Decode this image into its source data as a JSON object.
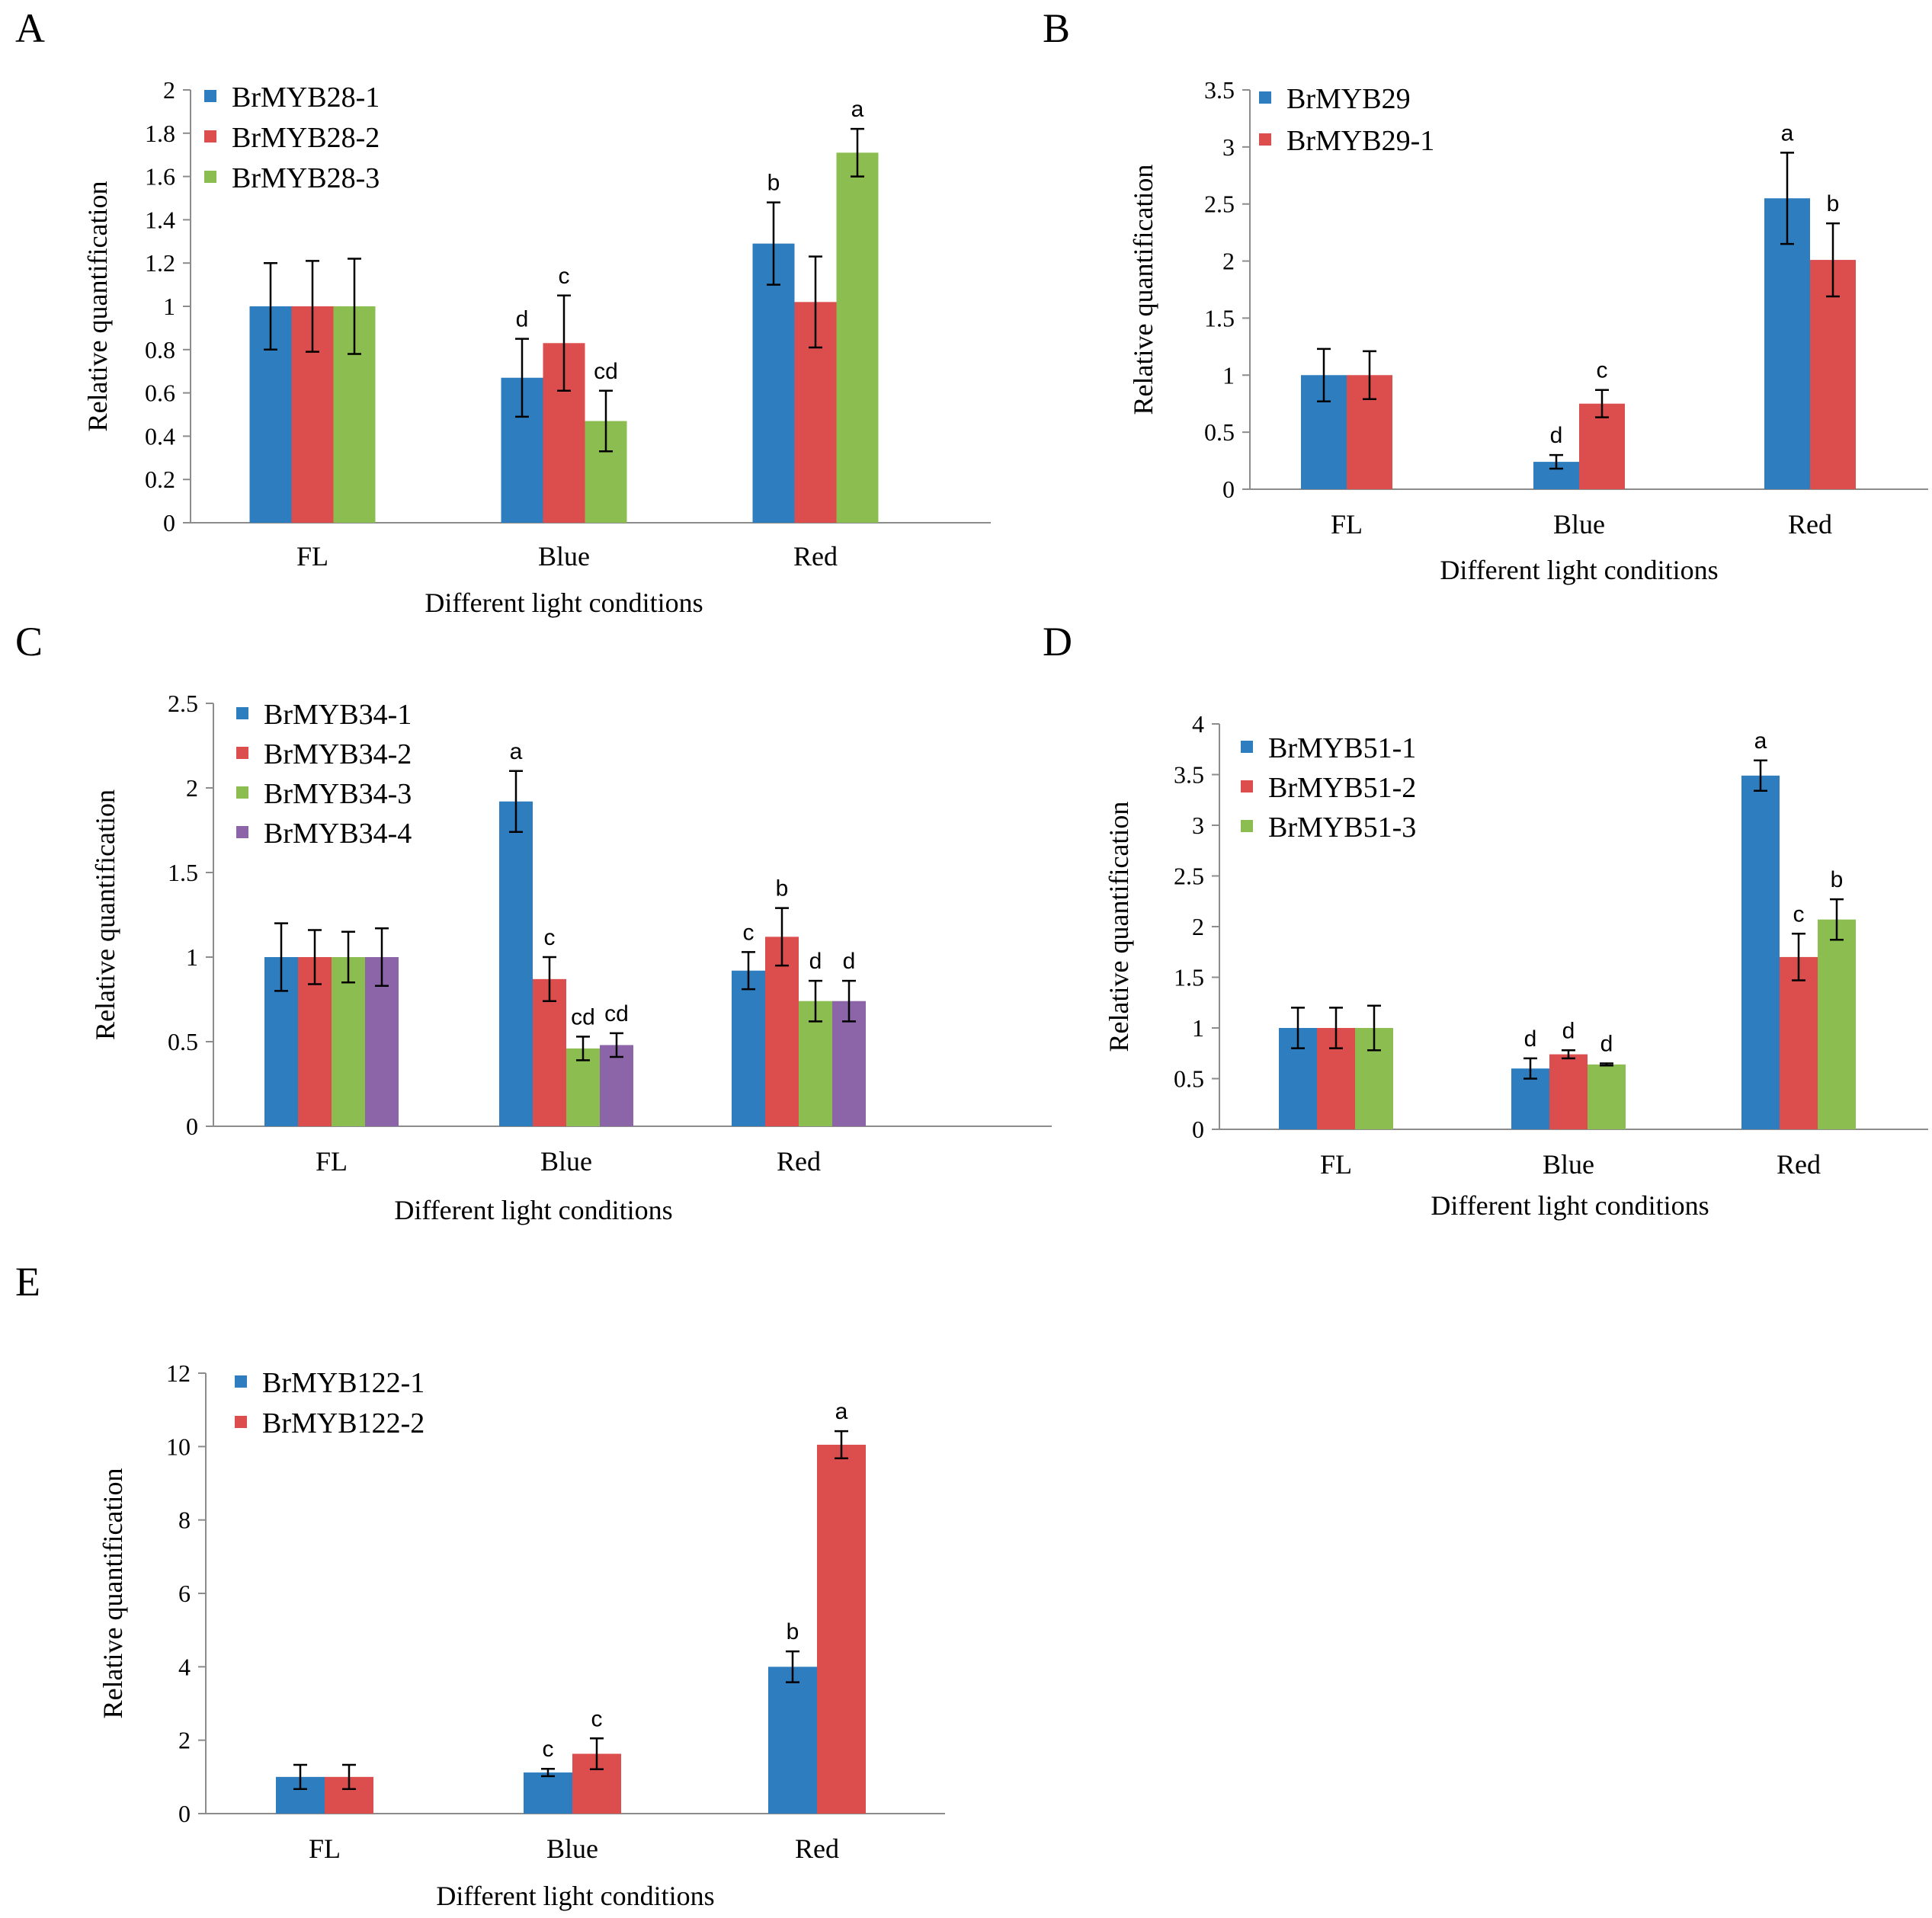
{
  "colors": {
    "blue": "#2e7ebf",
    "red": "#dc4d4d",
    "green": "#8bbd50",
    "purple": "#8c65a9"
  },
  "chart_data": [
    {
      "panel": "A",
      "type": "bar",
      "categories": [
        "FL",
        "Blue",
        "Red"
      ],
      "xlabel": "Different light  conditions",
      "ylabel": "Relative quantification",
      "ylim": [
        0,
        2
      ],
      "yticks": [
        "0",
        "0.2",
        "0.4",
        "0.6",
        "0.8",
        "1",
        "1.2",
        "1.4",
        "1.6",
        "1.8",
        "2"
      ],
      "legend_position": "top-left",
      "series": [
        {
          "name": "BrMYB28-1",
          "color": "blue",
          "values": [
            1.0,
            0.67,
            1.29
          ],
          "errors": [
            0.2,
            0.18,
            0.19
          ],
          "labels": [
            "",
            "d",
            "b"
          ]
        },
        {
          "name": "BrMYB28-2",
          "color": "red",
          "values": [
            1.0,
            0.83,
            1.02
          ],
          "errors": [
            0.21,
            0.22,
            0.21
          ],
          "labels": [
            "",
            "c",
            ""
          ]
        },
        {
          "name": "BrMYB28-3",
          "color": "green",
          "values": [
            1.0,
            0.47,
            1.71
          ],
          "errors": [
            0.22,
            0.14,
            0.11
          ],
          "labels": [
            "",
            "cd",
            "a"
          ]
        }
      ]
    },
    {
      "panel": "B",
      "type": "bar",
      "categories": [
        "FL",
        "Blue",
        "Red"
      ],
      "xlabel": "Different light  conditions",
      "ylabel": "Relative quantification",
      "ylim": [
        0,
        3.5
      ],
      "yticks": [
        "0",
        "0.5",
        "1",
        "1.5",
        "2",
        "2.5",
        "3",
        "3.5"
      ],
      "legend_position": "top-left",
      "series": [
        {
          "name": "BrMYB29",
          "color": "blue",
          "values": [
            1.0,
            0.24,
            2.55
          ],
          "errors": [
            0.23,
            0.06,
            0.4
          ],
          "labels": [
            "",
            "d",
            "a"
          ]
        },
        {
          "name": "BrMYB29-1",
          "color": "red",
          "values": [
            1.0,
            0.75,
            2.01
          ],
          "errors": [
            0.21,
            0.12,
            0.32
          ],
          "labels": [
            "",
            "c",
            "b"
          ]
        }
      ]
    },
    {
      "panel": "C",
      "type": "bar",
      "categories": [
        "FL",
        "Blue",
        "Red"
      ],
      "xlabel": "Different light  conditions",
      "ylabel": "Relative quantification",
      "ylim": [
        0,
        2.5
      ],
      "yticks": [
        "0",
        "0.5",
        "1",
        "1.5",
        "2",
        "2.5"
      ],
      "legend_position": "top-left",
      "series": [
        {
          "name": "BrMYB34-1",
          "color": "blue",
          "values": [
            1.0,
            1.92,
            0.92
          ],
          "errors": [
            0.2,
            0.18,
            0.11
          ],
          "labels": [
            "",
            "a",
            "c"
          ]
        },
        {
          "name": "BrMYB34-2",
          "color": "red",
          "values": [
            1.0,
            0.87,
            1.12
          ],
          "errors": [
            0.16,
            0.13,
            0.17
          ],
          "labels": [
            "",
            "c",
            "b"
          ]
        },
        {
          "name": "BrMYB34-3",
          "color": "green",
          "values": [
            1.0,
            0.46,
            0.74
          ],
          "errors": [
            0.15,
            0.07,
            0.12
          ],
          "labels": [
            "",
            "cd",
            "d"
          ]
        },
        {
          "name": "BrMYB34-4",
          "color": "purple",
          "values": [
            1.0,
            0.48,
            0.74
          ],
          "errors": [
            0.17,
            0.07,
            0.12
          ],
          "labels": [
            "",
            "cd",
            "d"
          ]
        }
      ]
    },
    {
      "panel": "D",
      "type": "bar",
      "categories": [
        "FL",
        "Blue",
        "Red"
      ],
      "xlabel": "Different light  conditions",
      "ylabel": "Relative quantification",
      "ylim": [
        0,
        4
      ],
      "yticks": [
        "0",
        "0.5",
        "1",
        "1.5",
        "2",
        "2.5",
        "3",
        "3.5",
        "4"
      ],
      "legend_position": "top-left",
      "series": [
        {
          "name": "BrMYB51-1",
          "color": "blue",
          "values": [
            1.0,
            0.6,
            3.49
          ],
          "errors": [
            0.2,
            0.1,
            0.15
          ],
          "labels": [
            "",
            "d",
            "a"
          ]
        },
        {
          "name": "BrMYB51-2",
          "color": "red",
          "values": [
            1.0,
            0.74,
            1.7
          ],
          "errors": [
            0.2,
            0.04,
            0.23
          ],
          "labels": [
            "",
            "d",
            "c"
          ]
        },
        {
          "name": "BrMYB51-3",
          "color": "green",
          "values": [
            1.0,
            0.64,
            2.07
          ],
          "errors": [
            0.22,
            0.01,
            0.2
          ],
          "labels": [
            "",
            "d",
            "b"
          ]
        }
      ]
    },
    {
      "panel": "E",
      "type": "bar",
      "categories": [
        "FL",
        "Blue",
        "Red"
      ],
      "xlabel": "Different light  conditions",
      "ylabel": "Relative quantification",
      "ylim": [
        0,
        12
      ],
      "yticks": [
        "0",
        "2",
        "4",
        "6",
        "8",
        "10",
        "12"
      ],
      "legend_position": "top-left",
      "series": [
        {
          "name": "BrMYB122-1",
          "color": "blue",
          "values": [
            1.0,
            1.12,
            4.0
          ],
          "errors": [
            0.33,
            0.1,
            0.42
          ],
          "labels": [
            "",
            "c",
            "b"
          ]
        },
        {
          "name": "BrMYB122-2",
          "color": "red",
          "values": [
            1.0,
            1.63,
            10.05
          ],
          "errors": [
            0.33,
            0.42,
            0.37
          ],
          "labels": [
            "",
            "c",
            "a"
          ]
        }
      ]
    }
  ]
}
